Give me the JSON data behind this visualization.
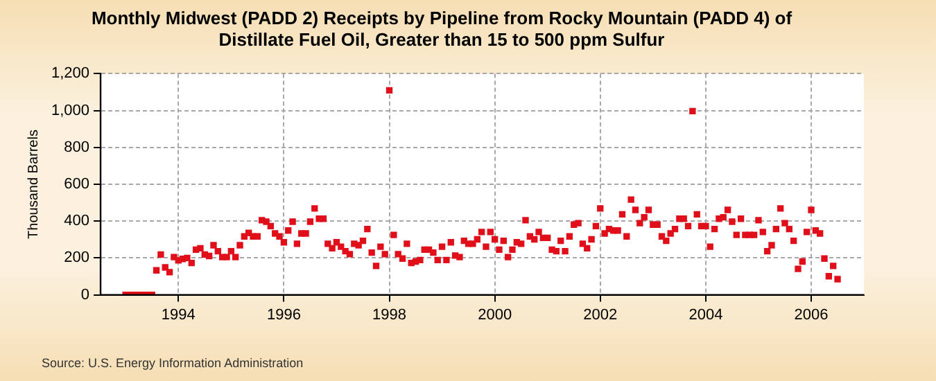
{
  "chart_data": {
    "type": "scatter",
    "title": "Monthly Midwest (PADD 2) Receipts by Pipeline from Rocky Mountain (PADD 4) of Distillate Fuel Oil, Greater than 15 to 500 ppm Sulfur",
    "ylabel": "Thousand Barrels",
    "annotations": [
      "Source: U.S. Energy Information Administration"
    ],
    "x": [
      "1993-01",
      "1993-02",
      "1993-03",
      "1993-04",
      "1993-05",
      "1993-06",
      "1993-07",
      "1993-08",
      "1993-09",
      "1993-10",
      "1993-11",
      "1993-12",
      "1994-01",
      "1994-02",
      "1994-03",
      "1994-04",
      "1994-05",
      "1994-06",
      "1994-07",
      "1994-08",
      "1994-09",
      "1994-10",
      "1994-11",
      "1994-12",
      "1995-01",
      "1995-02",
      "1995-03",
      "1995-04",
      "1995-05",
      "1995-06",
      "1995-07",
      "1995-08",
      "1995-09",
      "1995-10",
      "1995-11",
      "1995-12",
      "1996-01",
      "1996-02",
      "1996-03",
      "1996-04",
      "1996-05",
      "1996-06",
      "1996-07",
      "1996-08",
      "1996-09",
      "1996-10",
      "1996-11",
      "1996-12",
      "1997-01",
      "1997-02",
      "1997-03",
      "1997-04",
      "1997-05",
      "1997-06",
      "1997-07",
      "1997-08",
      "1997-09",
      "1997-10",
      "1997-11",
      "1997-12",
      "1998-01",
      "1998-02",
      "1998-03",
      "1998-04",
      "1998-05",
      "1998-06",
      "1998-07",
      "1998-08",
      "1998-09",
      "1998-10",
      "1998-11",
      "1998-12",
      "1999-01",
      "1999-02",
      "1999-03",
      "1999-04",
      "1999-05",
      "1999-06",
      "1999-07",
      "1999-08",
      "1999-09",
      "1999-10",
      "1999-11",
      "1999-12",
      "2000-01",
      "2000-02",
      "2000-03",
      "2000-04",
      "2000-05",
      "2000-06",
      "2000-07",
      "2000-08",
      "2000-09",
      "2000-10",
      "2000-11",
      "2000-12",
      "2001-01",
      "2001-02",
      "2001-03",
      "2001-04",
      "2001-05",
      "2001-06",
      "2001-07",
      "2001-08",
      "2001-09",
      "2001-10",
      "2001-11",
      "2001-12",
      "2002-01",
      "2002-02",
      "2002-03",
      "2002-04",
      "2002-05",
      "2002-06",
      "2002-07",
      "2002-08",
      "2002-09",
      "2002-10",
      "2002-11",
      "2002-12",
      "2003-01",
      "2003-02",
      "2003-03",
      "2003-04",
      "2003-05",
      "2003-06",
      "2003-07",
      "2003-08",
      "2003-09",
      "2003-10",
      "2003-11",
      "2003-12",
      "2004-01",
      "2004-02",
      "2004-03",
      "2004-04",
      "2004-05",
      "2004-06",
      "2004-07",
      "2004-08",
      "2004-09",
      "2004-10",
      "2004-11",
      "2004-12",
      "2005-01",
      "2005-02",
      "2005-03",
      "2005-04",
      "2005-05",
      "2005-06",
      "2005-07",
      "2005-08",
      "2005-09",
      "2005-10",
      "2005-11",
      "2005-12",
      "2006-01",
      "2006-02",
      "2006-03",
      "2006-04",
      "2006-05",
      "2006-06",
      "2006-07"
    ],
    "series": [
      {
        "color": "#e00f1a",
        "values": [
          0,
          0,
          0,
          0,
          0,
          0,
          0,
          133,
          219,
          149,
          123,
          205,
          187,
          195,
          200,
          173,
          245,
          253,
          219,
          211,
          269,
          237,
          205,
          205,
          237,
          205,
          269,
          317,
          336,
          317,
          317,
          405,
          397,
          373,
          333,
          317,
          285,
          349,
          397,
          277,
          333,
          333,
          397,
          469,
          413,
          413,
          277,
          253,
          285,
          261,
          237,
          221,
          277,
          269,
          293,
          357,
          229,
          157,
          261,
          221,
          1110,
          325,
          221,
          197,
          277,
          173,
          181,
          189,
          245,
          245,
          229,
          189,
          261,
          189,
          285,
          213,
          205,
          293,
          277,
          277,
          301,
          341,
          261,
          341,
          301,
          245,
          293,
          205,
          245,
          285,
          277,
          405,
          317,
          301,
          341,
          309,
          309,
          245,
          237,
          293,
          237,
          317,
          381,
          389,
          277,
          253,
          301,
          373,
          469,
          333,
          357,
          349,
          349,
          437,
          317,
          517,
          461,
          389,
          421,
          461,
          381,
          381,
          317,
          293,
          333,
          357,
          413,
          413,
          373,
          997,
          437,
          373,
          373,
          261,
          357,
          413,
          421,
          461,
          397,
          325,
          413,
          325,
          325,
          325,
          405,
          341,
          237,
          269,
          357,
          469,
          389,
          357,
          293,
          141,
          181,
          341,
          461,
          349,
          333,
          197,
          101,
          157,
          85
        ]
      }
    ],
    "xlim": [
      "1992-07-10",
      "2006-12-31"
    ],
    "xticks": [
      "1994",
      "1996",
      "1998",
      "2000",
      "2002",
      "2004",
      "2006"
    ],
    "ylim": [
      0,
      1200
    ],
    "yticks": [
      0,
      200,
      400,
      600,
      800,
      {
        "value": 1000,
        "label": "1,000"
      },
      {
        "value": 1200,
        "label": "1,200"
      }
    ],
    "grid": true,
    "legend": false,
    "marker": "square"
  }
}
